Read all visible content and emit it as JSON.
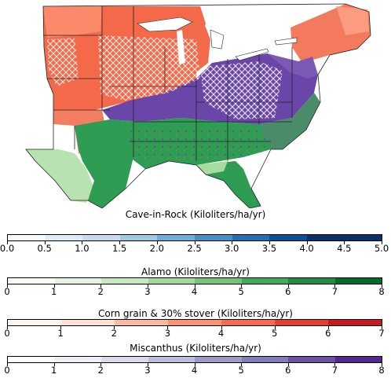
{
  "colorbars": [
    {
      "title": "Cave-in-Rock (Kiloliters/ha/yr)",
      "tick_labels": [
        "0.0",
        "0.5",
        "1.0",
        "1.5",
        "2.0",
        "2.5",
        "3.0",
        "3.5",
        "4.0",
        "4.5",
        "5.0"
      ],
      "min": 0,
      "max": 5,
      "colors": [
        "#f7fbff",
        "#deebf7",
        "#c6dbef",
        "#9ecae1",
        "#6baed6",
        "#4292c6",
        "#2171b5",
        "#08519c",
        "#08306b",
        "#08306b"
      ]
    },
    {
      "title": "Alamo (Kiloliters/ha/yr)",
      "tick_labels": [
        "0",
        "1",
        "2",
        "3",
        "4",
        "5",
        "6",
        "7",
        "8"
      ],
      "min": 0,
      "max": 8,
      "colors": [
        "#f7fcf5",
        "#e5f5e0",
        "#c7e9c0",
        "#a1d99b",
        "#74c476",
        "#41ab5d",
        "#238b45",
        "#006d2c"
      ]
    },
    {
      "title": "Corn grain & 30% stover (Kiloliters/ha/yr)",
      "tick_labels": [
        "0",
        "1",
        "2",
        "3",
        "4",
        "5",
        "6",
        "7"
      ],
      "min": 0,
      "max": 7,
      "colors": [
        "#fff5f0",
        "#fee0d2",
        "#fcbba1",
        "#fc9272",
        "#fb6a4a",
        "#ef3b2c",
        "#cb181d"
      ]
    },
    {
      "title": "Miscanthus (Kiloliters/ha/yr)",
      "tick_labels": [
        "0",
        "1",
        "2",
        "3",
        "4",
        "5",
        "6",
        "7",
        "8"
      ],
      "min": 0,
      "max": 8,
      "colors": [
        "#fcfbfd",
        "#efedf5",
        "#dadaeb",
        "#bcbddc",
        "#9e9ac8",
        "#807dba",
        "#6a51a3",
        "#54278f"
      ]
    }
  ],
  "map_legend_colors": {
    "corn": "#f4694a",
    "corn_light": "#fb9d7f",
    "miscanthus": "#6a46a8",
    "alamo": "#2e9c52",
    "alamo_light": "#a8dba0",
    "cave_in_rock": "#3a78c0",
    "state_border": "#222222"
  }
}
